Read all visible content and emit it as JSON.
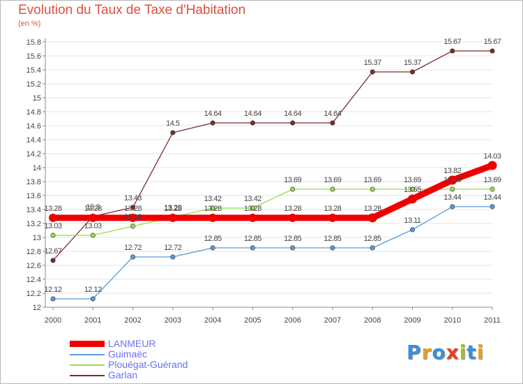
{
  "header": {
    "title": "Evolution du Taux de Taxe d'Habitation",
    "subtitle": "(en %)"
  },
  "logo": {
    "text": "Proxiti",
    "colors": [
      "#3b8fd8",
      "#e8a020",
      "#3b8fd8",
      "#e84020",
      "#a0c020",
      "#3b8fd8",
      "#e8a020"
    ]
  },
  "chart_data": {
    "type": "line",
    "x": [
      "2000",
      "2001",
      "2002",
      "2003",
      "2004",
      "2005",
      "2006",
      "2007",
      "2008",
      "2009",
      "2010",
      "2011"
    ],
    "ylim": [
      12,
      15.8
    ],
    "yticks": [
      "12",
      "12.2",
      "12.4",
      "12.6",
      "12.8",
      "13",
      "13.2",
      "13.4",
      "13.6",
      "13.8",
      "14",
      "14.2",
      "14.4",
      "14.6",
      "14.8",
      "15",
      "15.2",
      "15.4",
      "15.6",
      "15.8"
    ],
    "grid": true,
    "legend": "bottom-left",
    "series": [
      {
        "name": "LANMEUR",
        "color": "#ee0000",
        "values": [
          13.28,
          13.28,
          13.28,
          13.28,
          13.28,
          13.28,
          13.28,
          13.28,
          13.28,
          13.55,
          13.82,
          14.03
        ],
        "labels": [
          "13.28",
          "13.28",
          "13.28",
          "13.28",
          "13.28",
          "13.28",
          "13.28",
          "13.28",
          "13.28",
          "13.55",
          "13.82",
          "14.03"
        ]
      },
      {
        "name": "Guimaëc",
        "color": "#5b9bd5",
        "values": [
          12.12,
          12.12,
          12.72,
          12.72,
          12.85,
          12.85,
          12.85,
          12.85,
          12.85,
          13.11,
          13.44,
          13.44
        ],
        "labels": [
          "12.12",
          "12.12",
          "12.72",
          "12.72",
          "12.85",
          "12.85",
          "12.85",
          "12.85",
          "12.85",
          "13.11",
          "13.44",
          "13.44"
        ]
      },
      {
        "name": "Plouégat-Guérand",
        "color": "#99dd44",
        "values": [
          13.03,
          13.03,
          13.16,
          13.29,
          13.42,
          13.42,
          13.69,
          13.69,
          13.69,
          13.69,
          13.69,
          13.69
        ],
        "labels": [
          "13.03",
          "13.03",
          "13.16",
          "13.29",
          "13.42",
          "13.42",
          "13.69",
          "13.69",
          "13.69",
          "13.69",
          "13.69",
          "13.69"
        ]
      },
      {
        "name": "Garlan",
        "color": "#7a2a2a",
        "values": [
          12.67,
          13.3,
          13.43,
          14.5,
          14.64,
          14.64,
          14.64,
          14.64,
          15.37,
          15.37,
          15.67,
          15.67
        ],
        "labels": [
          "12.67",
          "13.3",
          "13.43",
          "14.5",
          "14.64",
          "14.64",
          "14.64",
          "14.64",
          "15.37",
          "15.37",
          "15.67",
          "15.67"
        ]
      }
    ]
  }
}
